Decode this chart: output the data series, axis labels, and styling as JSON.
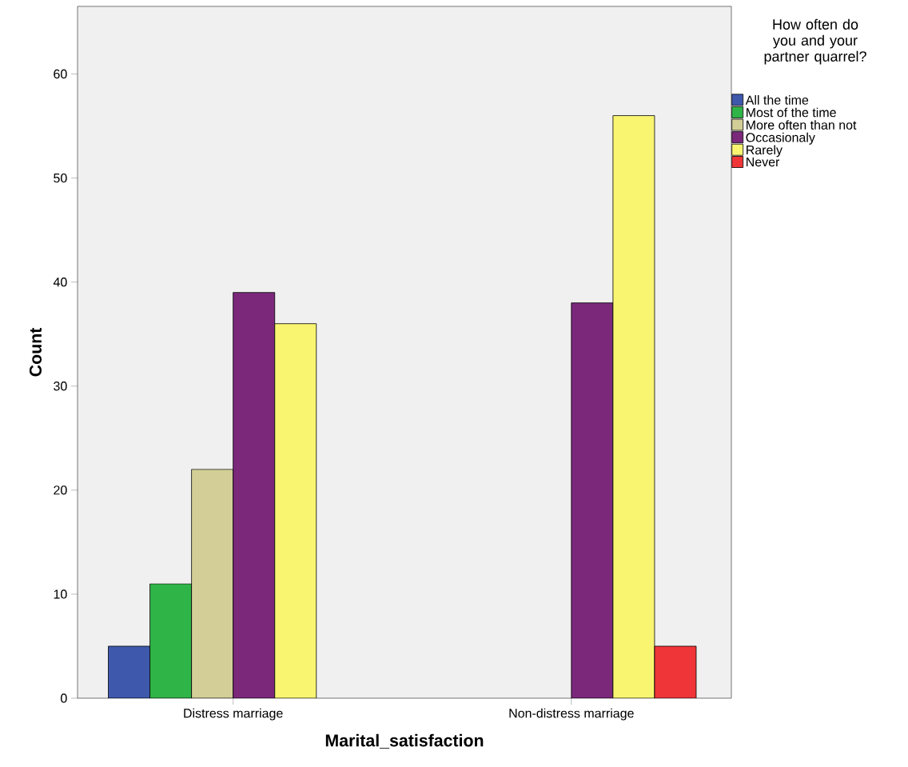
{
  "chart_data": {
    "type": "bar",
    "xlabel": "Marital_satisfaction",
    "ylabel": "Count",
    "legend_title": "How often do you and your partner quarrel?",
    "categories": [
      "Distress marriage",
      "Non-distress marriage"
    ],
    "series": [
      {
        "name": "All the time",
        "color": "#3e58ac",
        "values": [
          5,
          null
        ]
      },
      {
        "name": "Most of the time",
        "color": "#2fb547",
        "values": [
          11,
          null
        ]
      },
      {
        "name": "More often than not",
        "color": "#d3ce97",
        "values": [
          22,
          null
        ]
      },
      {
        "name": "Occasionaly",
        "color": "#7b287b",
        "values": [
          39,
          38
        ]
      },
      {
        "name": "Rarely",
        "color": "#f9f571",
        "values": [
          36,
          56
        ]
      },
      {
        "name": "Never",
        "color": "#ef3538",
        "values": [
          null,
          5
        ]
      }
    ],
    "ylim": [
      0,
      66.5
    ],
    "yticks": [
      0,
      10,
      20,
      30,
      40,
      50,
      60
    ],
    "grid": false,
    "legend": "top right"
  }
}
